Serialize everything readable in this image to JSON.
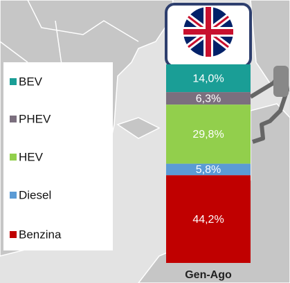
{
  "chart_data": {
    "type": "stacked-bar",
    "categories": [
      "Gen-Ago"
    ],
    "series": [
      {
        "name": "BEV",
        "color": "#1a9e96",
        "values": [
          14.0
        ],
        "value_labels": [
          "14,0%"
        ]
      },
      {
        "name": "PHEV",
        "color": "#7b6f7e",
        "values": [
          6.3
        ],
        "value_labels": [
          "6,3%"
        ]
      },
      {
        "name": "HEV",
        "color": "#92cf4c",
        "values": [
          29.8
        ],
        "value_labels": [
          "29,8%"
        ]
      },
      {
        "name": "Diesel",
        "color": "#5b9bd5",
        "values": [
          5.8
        ],
        "value_labels": [
          "5,8%"
        ]
      },
      {
        "name": "Benzina",
        "color": "#c00000",
        "values": [
          44.2
        ],
        "value_labels": [
          "44,2%"
        ]
      }
    ]
  }
}
